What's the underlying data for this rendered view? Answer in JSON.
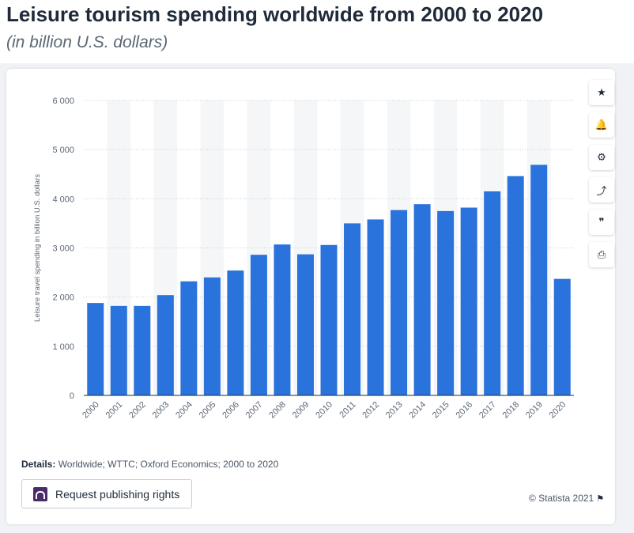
{
  "header": {
    "title": "Leisure tourism spending worldwide from 2000 to 2020",
    "subtitle": "(in billion U.S. dollars)"
  },
  "toolbar": [
    {
      "name": "favorite",
      "icon": "star-icon",
      "glyph": "★"
    },
    {
      "name": "notification",
      "icon": "bell-icon",
      "glyph": "🔔"
    },
    {
      "name": "settings",
      "icon": "gear-icon",
      "glyph": "⚙"
    },
    {
      "name": "share",
      "icon": "share-icon",
      "glyph": "⤴"
    },
    {
      "name": "cite",
      "icon": "quote-icon",
      "glyph": "❞"
    },
    {
      "name": "print",
      "icon": "print-icon",
      "glyph": "⎙"
    }
  ],
  "chart_data": {
    "type": "bar",
    "categories": [
      "2000",
      "2001",
      "2002",
      "2003",
      "2004",
      "2005",
      "2006",
      "2007",
      "2008",
      "2009",
      "2010",
      "2011",
      "2012",
      "2013",
      "2014",
      "2015",
      "2016",
      "2017",
      "2018",
      "2019",
      "2020"
    ],
    "values": [
      1880,
      1820,
      1820,
      2040,
      2320,
      2400,
      2540,
      2860,
      3070,
      2870,
      3060,
      3500,
      3580,
      3770,
      3890,
      3750,
      3820,
      4150,
      4460,
      4690,
      2370
    ],
    "ylabel": "Leisure travel spending in billion U.S. dollars",
    "xlabel": "",
    "ylim": [
      0,
      6000
    ],
    "yticks": [
      0,
      1000,
      2000,
      3000,
      4000,
      5000,
      6000
    ],
    "ytick_labels": [
      "0",
      "1 000",
      "2 000",
      "3 000",
      "4 000",
      "5 000",
      "6 000"
    ],
    "bar_color": "#2a72dc",
    "band_color": "#f5f6f8",
    "grid": true
  },
  "footer": {
    "details_label": "Details:",
    "details_text": " Worldwide; WTTC; Oxford Economics; 2000 to 2020",
    "publish_button": "Request publishing rights",
    "copyright": "© Statista 2021",
    "flag_icon": "flag-icon"
  }
}
